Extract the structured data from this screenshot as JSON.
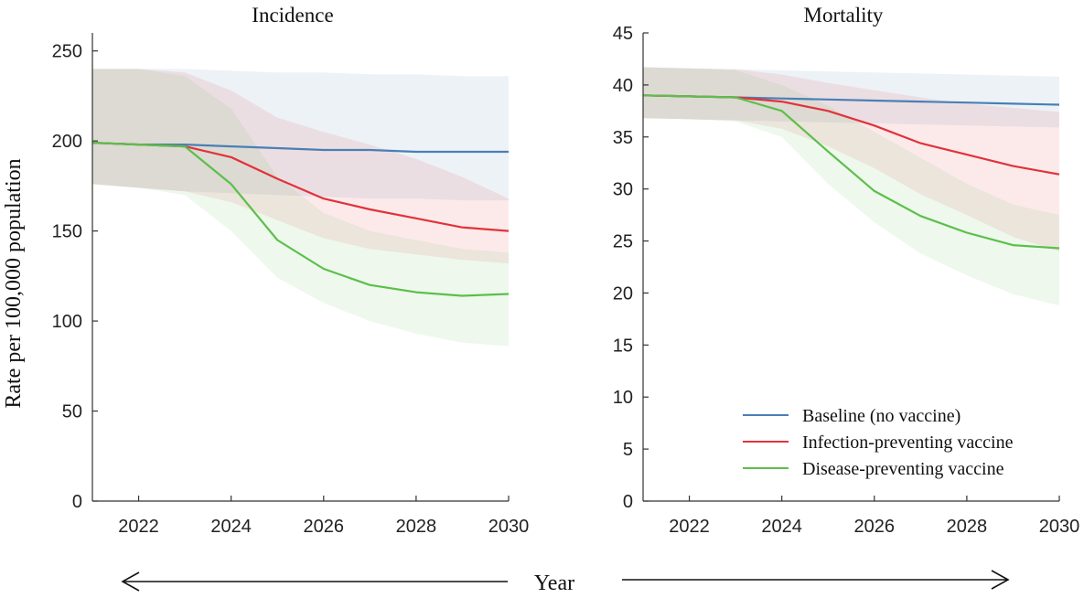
{
  "figure": {
    "ylabel": "Rate per 100,000 population",
    "xlabel": "Year"
  },
  "legend": {
    "items": [
      {
        "label": "Baseline (no vaccine)",
        "color": "#4a7fb5"
      },
      {
        "label": "Infection-preventing vaccine",
        "color": "#e2323a"
      },
      {
        "label": "Disease-preventing vaccine",
        "color": "#5cbf4a"
      }
    ]
  },
  "chart_data": [
    {
      "type": "line",
      "title": "Incidence",
      "xlabel": "Year",
      "ylabel": "Rate per 100,000 population",
      "xlim": [
        2021,
        2030
      ],
      "ylim": [
        0,
        260
      ],
      "xticks": [
        2022,
        2024,
        2026,
        2028,
        2030
      ],
      "xtick_labels": [
        "2022",
        "2024",
        "2026",
        "2028",
        "2030"
      ],
      "yticks": [
        0,
        50,
        100,
        150,
        200,
        250
      ],
      "ytick_labels": [
        "0",
        "50",
        "100",
        "150",
        "200",
        "250"
      ],
      "x": [
        2021,
        2022,
        2023,
        2024,
        2025,
        2026,
        2027,
        2028,
        2029,
        2030
      ],
      "series": [
        {
          "name": "Baseline (no vaccine)",
          "color": "#4a7fb5",
          "values": [
            199,
            198,
            198,
            197,
            196,
            195,
            195,
            194,
            194,
            194
          ],
          "lower": [
            176,
            174,
            172,
            171,
            170,
            169,
            168,
            168,
            167,
            167
          ],
          "upper": [
            240,
            240,
            240,
            239,
            238,
            238,
            237,
            237,
            236,
            236
          ]
        },
        {
          "name": "Infection-preventing vaccine",
          "color": "#e2323a",
          "values": [
            199,
            198,
            197,
            191,
            179,
            168,
            162,
            157,
            152,
            150
          ],
          "lower": [
            176,
            174,
            172,
            166,
            156,
            146,
            140,
            137,
            134,
            132
          ],
          "upper": [
            240,
            240,
            238,
            228,
            213,
            205,
            198,
            190,
            180,
            168
          ]
        },
        {
          "name": "Disease-preventing vaccine",
          "color": "#5cbf4a",
          "values": [
            199,
            198,
            197,
            176,
            145,
            129,
            120,
            116,
            114,
            115
          ],
          "lower": [
            176,
            174,
            170,
            150,
            124,
            110,
            100,
            93,
            88,
            86
          ],
          "upper": [
            240,
            240,
            236,
            218,
            180,
            160,
            150,
            145,
            140,
            138
          ]
        }
      ]
    },
    {
      "type": "line",
      "title": "Mortality",
      "xlabel": "Year",
      "ylabel": "Rate per 100,000 population",
      "xlim": [
        2021,
        2030
      ],
      "ylim": [
        0,
        45
      ],
      "xticks": [
        2022,
        2024,
        2026,
        2028,
        2030
      ],
      "xtick_labels": [
        "2022",
        "2024",
        "2026",
        "2028",
        "2030"
      ],
      "yticks": [
        0,
        5,
        10,
        15,
        20,
        25,
        30,
        35,
        40,
        45
      ],
      "ytick_labels": [
        "0",
        "5",
        "10",
        "15",
        "20",
        "25",
        "30",
        "35",
        "40",
        "45"
      ],
      "x": [
        2021,
        2022,
        2023,
        2024,
        2025,
        2026,
        2027,
        2028,
        2029,
        2030
      ],
      "series": [
        {
          "name": "Baseline (no vaccine)",
          "color": "#4a7fb5",
          "values": [
            39.0,
            38.9,
            38.8,
            38.7,
            38.6,
            38.5,
            38.4,
            38.3,
            38.2,
            38.1
          ],
          "lower": [
            36.8,
            36.7,
            36.6,
            36.5,
            36.4,
            36.3,
            36.2,
            36.1,
            36.0,
            35.9
          ],
          "upper": [
            41.7,
            41.6,
            41.5,
            41.4,
            41.3,
            41.2,
            41.1,
            41.0,
            40.9,
            40.8
          ]
        },
        {
          "name": "Infection-preventing vaccine",
          "color": "#e2323a",
          "values": [
            39.0,
            38.9,
            38.8,
            38.4,
            37.5,
            36.1,
            34.4,
            33.3,
            32.2,
            31.4
          ],
          "lower": [
            36.8,
            36.7,
            36.6,
            35.8,
            34.1,
            32.0,
            29.5,
            27.5,
            25.4,
            24.0
          ],
          "upper": [
            41.7,
            41.6,
            41.5,
            41.0,
            40.2,
            39.5,
            38.8,
            38.2,
            37.8,
            37.4
          ]
        },
        {
          "name": "Disease-preventing vaccine",
          "color": "#5cbf4a",
          "values": [
            39.0,
            38.9,
            38.8,
            37.5,
            33.6,
            29.8,
            27.4,
            25.8,
            24.6,
            24.3
          ],
          "lower": [
            36.8,
            36.7,
            36.5,
            35.0,
            30.5,
            26.8,
            23.8,
            21.7,
            19.9,
            18.8
          ],
          "upper": [
            41.7,
            41.6,
            41.4,
            40.0,
            38.0,
            35.5,
            33.0,
            30.5,
            28.5,
            27.5
          ]
        }
      ]
    }
  ]
}
